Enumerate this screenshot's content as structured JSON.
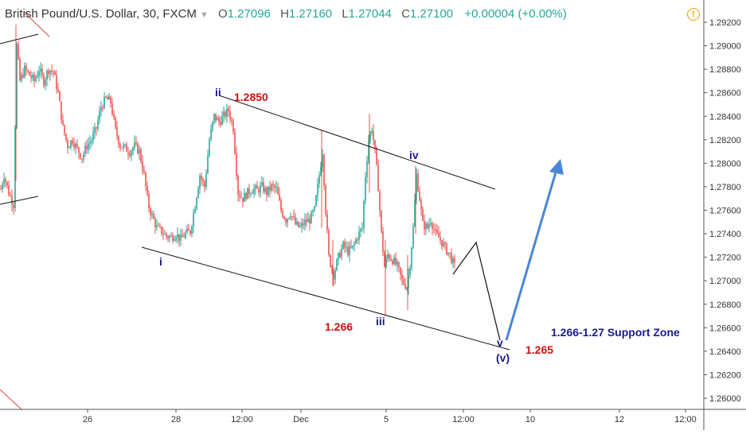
{
  "header": {
    "symbol": "British Pound/U.S. Dollar, 30, FXCM",
    "open_label": "O",
    "open": "1.27096",
    "high_label": "H",
    "high": "1.27160",
    "low_label": "L",
    "low": "1.27044",
    "close_label": "C",
    "close": "1.27100",
    "change": "+0.00004 (+0.00%)",
    "alert_icon": "alert-clock-icon"
  },
  "colors": {
    "up": "#26a69a",
    "down": "#ef5350",
    "label_blue": "#1a1a8c",
    "label_red": "#cc1111",
    "arrow": "#4a86d8"
  },
  "chart_data": {
    "type": "candlestick",
    "y_axis": {
      "ticks": [
        "1.29200",
        "1.29000",
        "1.28800",
        "1.28600",
        "1.28400",
        "1.28200",
        "1.28000",
        "1.27800",
        "1.27600",
        "1.27400",
        "1.27200",
        "1.27000",
        "1.26800",
        "1.26600",
        "1.26400",
        "1.26200",
        "1.26000"
      ],
      "ylim": [
        1.2594,
        1.2928
      ]
    },
    "x_axis": {
      "ticks": [
        {
          "label": "26",
          "idx": 0
        },
        {
          "label": "28",
          "idx": 1
        },
        {
          "label": "12:00",
          "idx": 2
        },
        {
          "label": "Dec",
          "idx": 3
        },
        {
          "label": "5",
          "idx": 4
        },
        {
          "label": "12:00",
          "idx": 5
        },
        {
          "label": "10",
          "idx": 6
        },
        {
          "label": "12",
          "idx": 7
        },
        {
          "label": "12:00",
          "idx": 8
        }
      ]
    },
    "price_path": [
      [
        0,
        1.2778
      ],
      [
        4,
        1.279
      ],
      [
        10,
        1.2775
      ],
      [
        16,
        1.2765
      ],
      [
        20,
        1.29
      ],
      [
        24,
        1.287
      ],
      [
        30,
        1.288
      ],
      [
        36,
        1.2875
      ],
      [
        42,
        1.287
      ],
      [
        48,
        1.288
      ],
      [
        54,
        1.287
      ],
      [
        60,
        1.288
      ],
      [
        66,
        1.2878
      ],
      [
        72,
        1.286
      ],
      [
        78,
        1.283
      ],
      [
        84,
        1.2815
      ],
      [
        90,
        1.282
      ],
      [
        96,
        1.2812
      ],
      [
        102,
        1.2805
      ],
      [
        108,
        1.2815
      ],
      [
        114,
        1.282
      ],
      [
        120,
        1.283
      ],
      [
        126,
        1.2848
      ],
      [
        132,
        1.2855
      ],
      [
        138,
        1.2852
      ],
      [
        144,
        1.2828
      ],
      [
        150,
        1.2815
      ],
      [
        156,
        1.2813
      ],
      [
        162,
        1.281
      ],
      [
        168,
        1.2815
      ],
      [
        174,
        1.281
      ],
      [
        180,
        1.279
      ],
      [
        185,
        1.2765
      ],
      [
        190,
        1.2755
      ],
      [
        196,
        1.2745
      ],
      [
        202,
        1.2742
      ],
      [
        208,
        1.2738
      ],
      [
        214,
        1.2737
      ],
      [
        220,
        1.274
      ],
      [
        226,
        1.2735
      ],
      [
        232,
        1.274
      ],
      [
        238,
        1.2742
      ],
      [
        244,
        1.2765
      ],
      [
        250,
        1.279
      ],
      [
        256,
        1.278
      ],
      [
        262,
        1.282
      ],
      [
        268,
        1.284
      ],
      [
        274,
        1.2835
      ],
      [
        280,
        1.284
      ],
      [
        286,
        1.2845
      ],
      [
        292,
        1.283
      ],
      [
        298,
        1.2775
      ],
      [
        304,
        1.277
      ],
      [
        310,
        1.2775
      ],
      [
        316,
        1.2778
      ],
      [
        322,
        1.2777
      ],
      [
        328,
        1.278
      ],
      [
        334,
        1.2775
      ],
      [
        340,
        1.278
      ],
      [
        346,
        1.2778
      ],
      [
        352,
        1.276
      ],
      [
        358,
        1.2752
      ],
      [
        364,
        1.2758
      ],
      [
        370,
        1.2748
      ],
      [
        376,
        1.2745
      ],
      [
        382,
        1.275
      ],
      [
        388,
        1.2752
      ],
      [
        394,
        1.276
      ],
      [
        400,
        1.279
      ],
      [
        404,
        1.281
      ],
      [
        408,
        1.276
      ],
      [
        412,
        1.272
      ],
      [
        418,
        1.2705
      ],
      [
        424,
        1.272
      ],
      [
        430,
        1.273
      ],
      [
        436,
        1.2725
      ],
      [
        442,
        1.2728
      ],
      [
        448,
        1.2738
      ],
      [
        454,
        1.2745
      ],
      [
        458,
        1.279
      ],
      [
        462,
        1.282
      ],
      [
        466,
        1.283
      ],
      [
        470,
        1.281
      ],
      [
        474,
        1.278
      ],
      [
        478,
        1.274
      ],
      [
        482,
        1.2712
      ],
      [
        486,
        1.2722
      ],
      [
        492,
        1.2718
      ],
      [
        498,
        1.2712
      ],
      [
        504,
        1.27
      ],
      [
        510,
        1.2695
      ],
      [
        514,
        1.2715
      ],
      [
        518,
        1.2745
      ],
      [
        522,
        1.279
      ],
      [
        526,
        1.277
      ],
      [
        530,
        1.2748
      ],
      [
        536,
        1.2745
      ],
      [
        540,
        1.2752
      ],
      [
        546,
        1.274
      ],
      [
        552,
        1.2735
      ],
      [
        558,
        1.2728
      ],
      [
        564,
        1.2722
      ],
      [
        570,
        1.2712
      ]
    ],
    "annotations": [
      {
        "text": "ii",
        "color": "blue",
        "price": 1.2858,
        "idx": 268
      },
      {
        "text": "1.2850",
        "color": "red",
        "price": 1.2852,
        "idx": 320
      },
      {
        "text": "iv",
        "color": "blue",
        "price": 1.2806,
        "idx": 520
      },
      {
        "text": "i",
        "color": "blue",
        "price": 1.2717,
        "idx": 204
      },
      {
        "text": "iii",
        "color": "blue",
        "price": 1.2658,
        "idx": 478
      },
      {
        "text": "1.266",
        "color": "red",
        "price": 1.2657,
        "idx": 428
      },
      {
        "text": "v",
        "color": "blue",
        "price": 1.2652,
        "idx": 628
      },
      {
        "text": "(v)",
        "color": "blue",
        "price": 1.2632,
        "idx": 632
      },
      {
        "text": "1.265",
        "color": "red",
        "price": 1.264,
        "idx": 680
      },
      {
        "text": "1.266-1.27 Support Zone",
        "color": "blue",
        "price": 1.2662,
        "idx": 785
      }
    ]
  }
}
